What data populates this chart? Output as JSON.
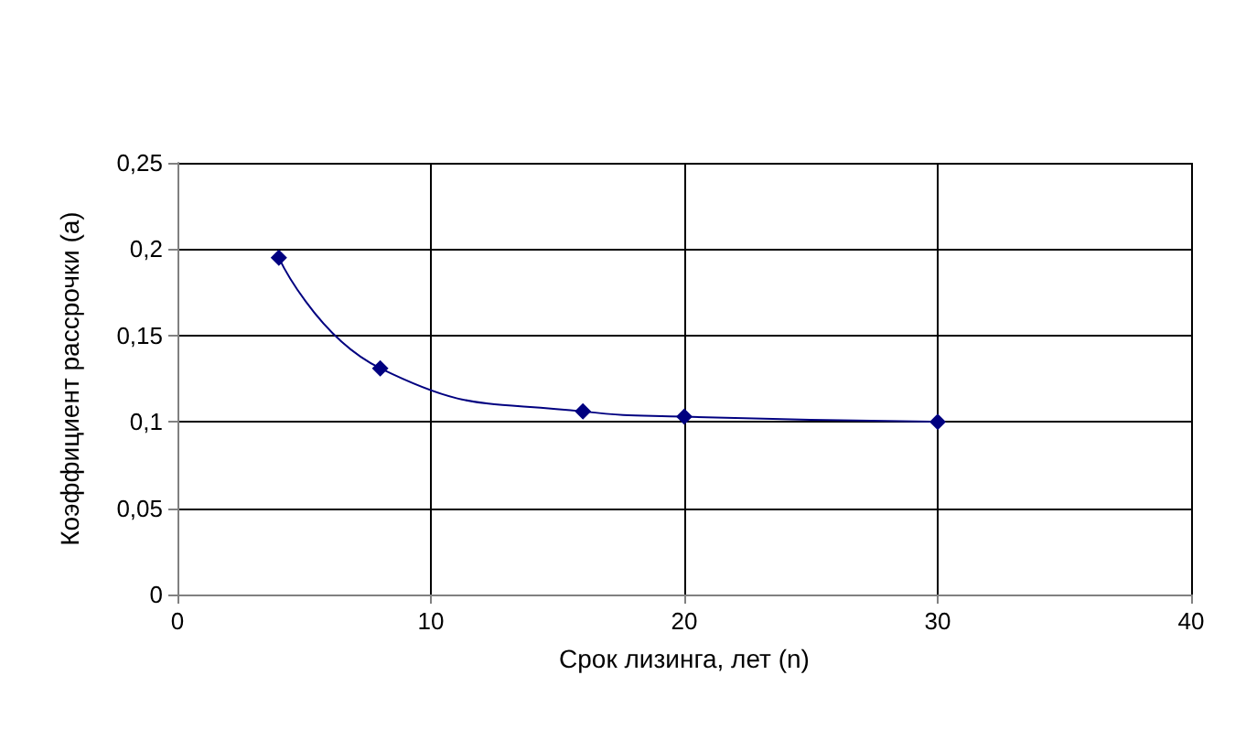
{
  "chart_data": {
    "type": "line",
    "xlabel": "Срок лизинга, лет (n)",
    "ylabel": "Коэффициент рассрочки (a)",
    "x": [
      4,
      8,
      16,
      20,
      30
    ],
    "series": [
      {
        "color": "#000080",
        "values": [
          0.195,
          0.131,
          0.106,
          0.103,
          0.1
        ]
      }
    ],
    "xlim": [
      0,
      40
    ],
    "xticks": [
      0,
      10,
      20,
      30,
      40
    ],
    "ylim": [
      0,
      0.25
    ],
    "yticks": [
      {
        "value": 0,
        "label": "0"
      },
      {
        "value": 0.05,
        "label": "0,05"
      },
      {
        "value": 0.1,
        "label": "0,1"
      },
      {
        "value": 0.15,
        "label": "0,15"
      },
      {
        "value": 0.2,
        "label": "0,2"
      },
      {
        "value": 0.25,
        "label": "0,25"
      }
    ],
    "grid": true,
    "marker": "diamond"
  }
}
